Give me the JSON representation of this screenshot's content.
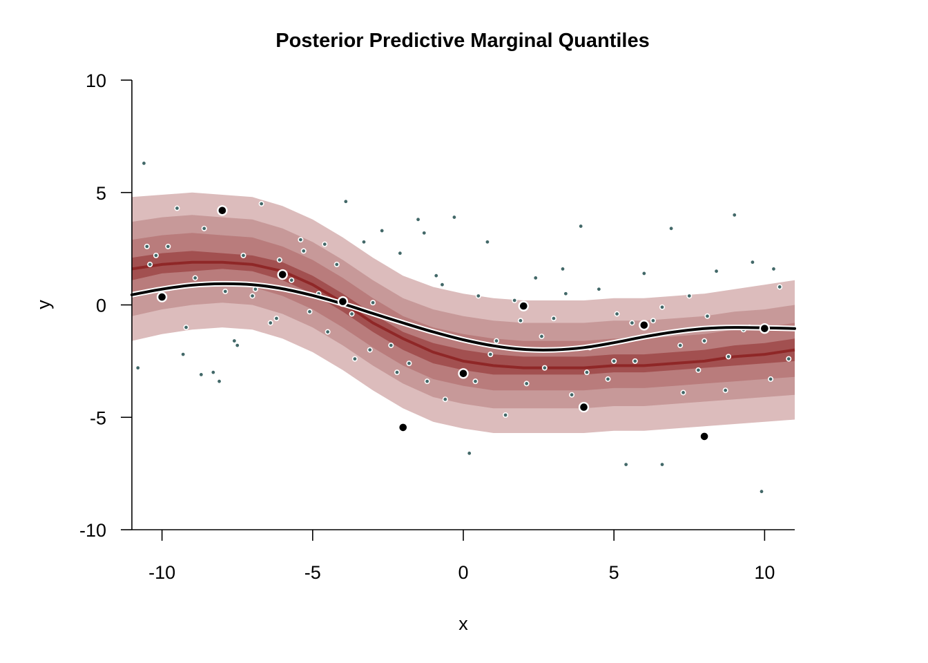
{
  "chart_data": {
    "type": "scatter",
    "title": "Posterior Predictive Marginal Quantiles",
    "xlabel": "x",
    "ylabel": "y",
    "xlim": [
      -11,
      11
    ],
    "ylim": [
      -10,
      10
    ],
    "x_ticks": [
      "-10",
      "-5",
      "0",
      "5",
      "10"
    ],
    "y_ticks": [
      "10",
      "5",
      "0",
      "-5",
      "-10"
    ],
    "grid": false,
    "legend": "none",
    "colors": {
      "band_outer": "#dcbcbc",
      "band_2": "#c79999",
      "band_3": "#b97c7c",
      "band_inner": "#a25050",
      "median": "#8f2727",
      "true_curve": "#000000",
      "predictive_points": "#426868",
      "observed_points": "#000000"
    },
    "quantile_bands": {
      "x": [
        -11,
        -10,
        -9,
        -8,
        -7,
        -6,
        -5,
        -4,
        -3,
        -2,
        -1,
        0,
        1,
        2,
        3,
        4,
        5,
        6,
        7,
        8,
        9,
        10,
        11
      ],
      "q10": [
        -1.6,
        -1.3,
        -1.1,
        -1.0,
        -1.1,
        -1.5,
        -2.1,
        -2.9,
        -3.8,
        -4.6,
        -5.2,
        -5.5,
        -5.7,
        -5.7,
        -5.7,
        -5.7,
        -5.6,
        -5.6,
        -5.5,
        -5.4,
        -5.3,
        -5.2,
        -5.1
      ],
      "q20": [
        -0.5,
        -0.2,
        0.0,
        0.1,
        0.0,
        -0.4,
        -1.0,
        -1.8,
        -2.7,
        -3.5,
        -4.1,
        -4.4,
        -4.6,
        -4.6,
        -4.6,
        -4.6,
        -4.5,
        -4.5,
        -4.4,
        -4.3,
        -4.2,
        -4.1,
        -4.0
      ],
      "q30": [
        0.3,
        0.6,
        0.8,
        0.9,
        0.8,
        0.4,
        -0.2,
        -1.0,
        -1.9,
        -2.7,
        -3.3,
        -3.6,
        -3.8,
        -3.8,
        -3.8,
        -3.8,
        -3.7,
        -3.7,
        -3.6,
        -3.5,
        -3.4,
        -3.3,
        -3.2
      ],
      "q40": [
        1.1,
        1.4,
        1.5,
        1.6,
        1.5,
        1.1,
        0.5,
        -0.3,
        -1.2,
        -2.0,
        -2.6,
        -2.9,
        -3.1,
        -3.1,
        -3.1,
        -3.1,
        -3.0,
        -3.0,
        -2.9,
        -2.8,
        -2.7,
        -2.6,
        -2.5
      ],
      "q50": [
        1.6,
        1.8,
        1.9,
        1.9,
        1.8,
        1.5,
        0.9,
        0.1,
        -0.8,
        -1.5,
        -2.1,
        -2.5,
        -2.7,
        -2.8,
        -2.8,
        -2.8,
        -2.7,
        -2.7,
        -2.6,
        -2.5,
        -2.3,
        -2.2,
        -2.0
      ],
      "q60": [
        2.1,
        2.3,
        2.4,
        2.3,
        2.2,
        1.9,
        1.3,
        0.5,
        -0.4,
        -1.2,
        -1.7,
        -2.0,
        -2.2,
        -2.3,
        -2.3,
        -2.3,
        -2.2,
        -2.2,
        -2.1,
        -2.0,
        -1.8,
        -1.7,
        -1.5
      ],
      "q70": [
        2.9,
        3.1,
        3.2,
        3.1,
        3.0,
        2.6,
        2.0,
        1.2,
        0.3,
        -0.5,
        -1.0,
        -1.3,
        -1.5,
        -1.6,
        -1.6,
        -1.6,
        -1.5,
        -1.5,
        -1.4,
        -1.3,
        -1.1,
        -1.0,
        -0.8
      ],
      "q80": [
        3.7,
        3.9,
        4.0,
        3.9,
        3.8,
        3.4,
        2.8,
        2.0,
        1.1,
        0.3,
        -0.2,
        -0.5,
        -0.7,
        -0.8,
        -0.8,
        -0.8,
        -0.7,
        -0.7,
        -0.6,
        -0.5,
        -0.3,
        -0.2,
        0.0
      ],
      "q90": [
        4.8,
        4.9,
        5.0,
        4.9,
        4.8,
        4.4,
        3.8,
        3.0,
        2.1,
        1.3,
        0.8,
        0.5,
        0.3,
        0.2,
        0.2,
        0.2,
        0.3,
        0.3,
        0.4,
        0.5,
        0.7,
        0.9,
        1.1
      ]
    },
    "true_curve": {
      "x": [
        -11,
        -10,
        -9,
        -8,
        -7,
        -6,
        -5,
        -4,
        -3,
        -2,
        -1,
        0,
        1,
        2,
        3,
        4,
        5,
        6,
        7,
        8,
        9,
        10,
        11
      ],
      "y": [
        0.45,
        0.7,
        0.88,
        0.94,
        0.9,
        0.72,
        0.42,
        0.05,
        -0.38,
        -0.8,
        -1.2,
        -1.55,
        -1.82,
        -1.98,
        -2.0,
        -1.9,
        -1.68,
        -1.42,
        -1.2,
        -1.05,
        -1.0,
        -1.02,
        -1.05
      ]
    },
    "observed_points": {
      "x": [
        -10,
        -8,
        -6,
        -4,
        -2,
        0,
        2,
        4,
        6,
        8,
        10
      ],
      "y": [
        0.35,
        4.2,
        1.35,
        0.15,
        -5.45,
        -3.05,
        -0.05,
        -4.55,
        -0.9,
        -5.85,
        -1.05
      ]
    },
    "predictive_points": {
      "x": [
        -10.6,
        -10.4,
        -9.8,
        -9.5,
        -9.2,
        -8.9,
        -8.6,
        -8.3,
        -7.9,
        -7.6,
        -7.3,
        -7.0,
        -6.7,
        -6.4,
        -6.1,
        -5.7,
        -5.4,
        -5.1,
        -4.8,
        -4.5,
        -4.2,
        -3.9,
        -3.6,
        -3.3,
        -3.0,
        -2.7,
        -2.4,
        -2.1,
        -1.8,
        -1.5,
        -1.2,
        -0.9,
        -0.6,
        -0.3,
        0.2,
        0.5,
        0.8,
        1.1,
        1.4,
        1.7,
        2.1,
        2.4,
        2.7,
        3.0,
        3.3,
        3.6,
        3.9,
        4.2,
        4.5,
        4.8,
        5.1,
        5.4,
        5.7,
        6.0,
        6.3,
        6.6,
        6.9,
        7.2,
        7.5,
        7.8,
        8.1,
        8.4,
        8.7,
        9.0,
        9.3,
        9.6,
        9.9,
        10.2,
        10.5,
        10.8,
        -10.5,
        -9.3,
        -8.1,
        -6.9,
        -5.3,
        -3.7,
        -2.2,
        -0.7,
        0.9,
        2.6,
        4.1,
        5.6,
        7.3,
        8.8,
        10.3,
        -10.8,
        -10.2,
        -8.7,
        -7.5,
        -6.2,
        -4.6,
        -3.1,
        -1.3,
        0.4,
        1.9,
        3.4,
        5.0,
        6.6,
        8.0,
        9.5
      ],
      "y": [
        6.3,
        1.8,
        2.6,
        4.3,
        -1.0,
        1.2,
        3.4,
        -3.0,
        0.6,
        -1.6,
        2.2,
        0.4,
        4.5,
        -0.8,
        2.0,
        1.1,
        2.9,
        -0.3,
        0.5,
        -1.2,
        1.8,
        4.6,
        -2.4,
        2.8,
        0.1,
        3.3,
        -1.8,
        2.3,
        -2.6,
        3.8,
        -3.4,
        1.3,
        -4.2,
        3.9,
        -6.6,
        0.4,
        2.8,
        -1.6,
        -4.9,
        0.2,
        -3.5,
        1.2,
        -2.8,
        -0.6,
        1.6,
        -4.0,
        3.5,
        -1.9,
        0.7,
        -3.3,
        -0.4,
        -7.1,
        -2.5,
        1.4,
        -0.7,
        -7.1,
        3.4,
        -1.8,
        0.4,
        -2.9,
        -0.5,
        1.5,
        -3.8,
        4.0,
        -1.1,
        1.9,
        -8.3,
        -3.3,
        0.8,
        -2.4,
        2.6,
        -2.2,
        -3.4,
        0.7,
        2.4,
        -0.4,
        -3.0,
        0.9,
        -2.2,
        -1.4,
        -3.0,
        -0.8,
        -3.9,
        -2.3,
        1.6,
        -2.8,
        2.2,
        -3.1,
        -1.8,
        -0.6,
        2.7,
        -2.0,
        3.2,
        -3.4,
        -0.7,
        0.5,
        -2.5,
        -0.1,
        -1.6,
        -1.0
      ]
    }
  }
}
